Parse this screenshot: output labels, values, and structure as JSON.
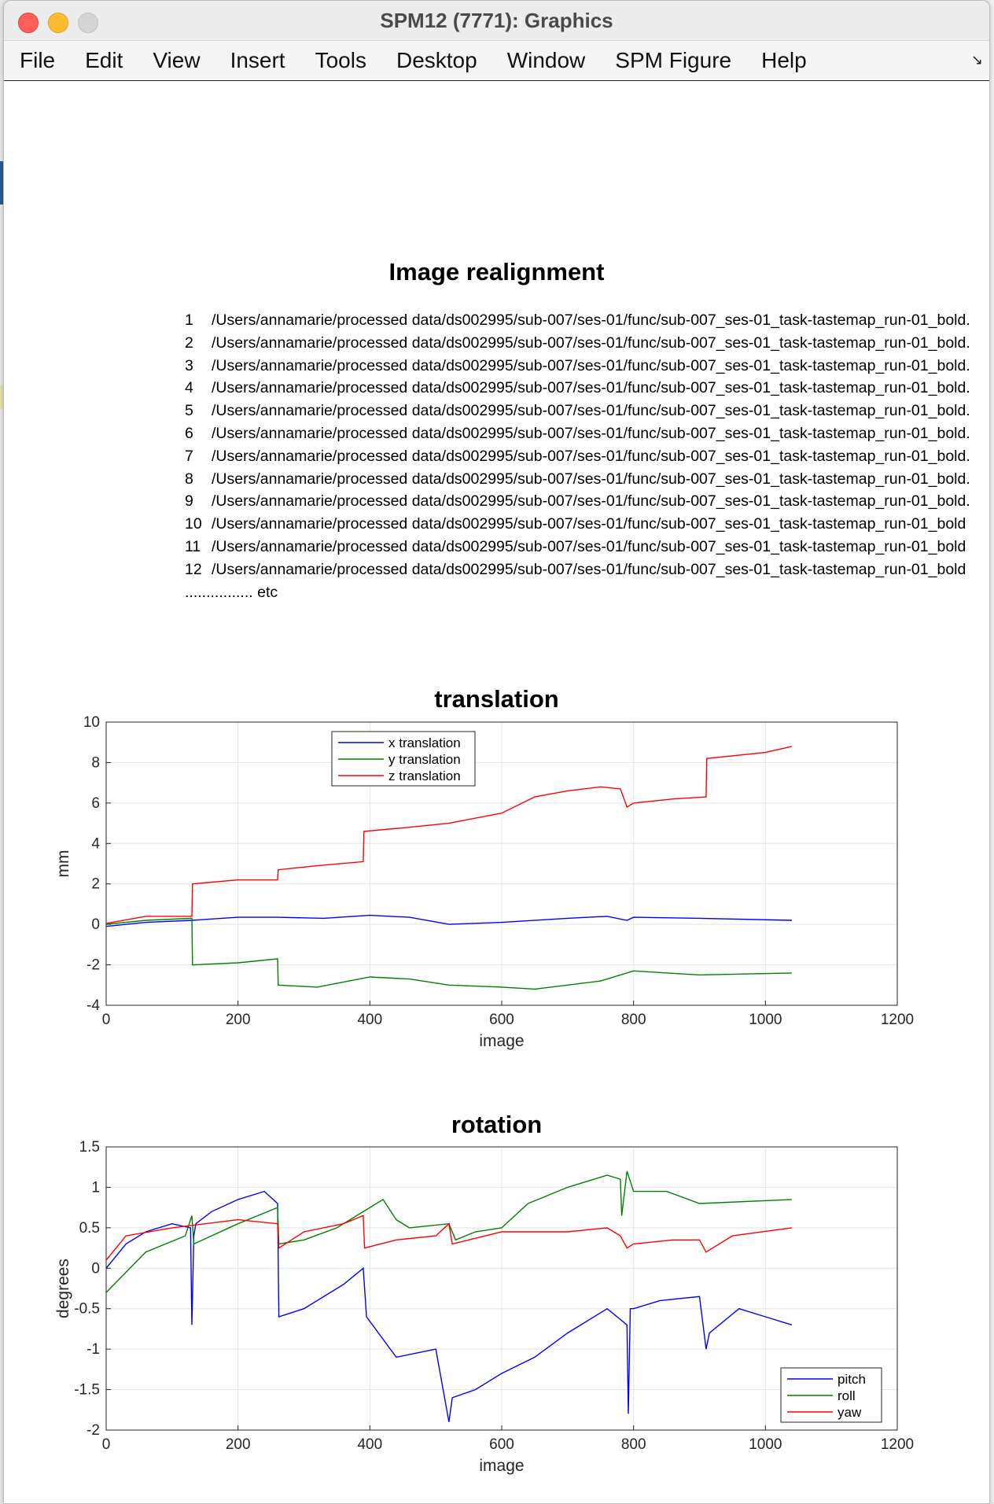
{
  "window": {
    "title": "SPM12 (7771): Graphics"
  },
  "menu": [
    "File",
    "Edit",
    "View",
    "Insert",
    "Tools",
    "Desktop",
    "Window",
    "SPM Figure",
    "Help"
  ],
  "figure": {
    "heading": "Image realignment",
    "files": [
      {
        "n": "1",
        "path": "/Users/annamarie/processed data/ds002995/sub-007/ses-01/func/sub-007_ses-01_task-tastemap_run-01_bold."
      },
      {
        "n": "2",
        "path": "/Users/annamarie/processed data/ds002995/sub-007/ses-01/func/sub-007_ses-01_task-tastemap_run-01_bold."
      },
      {
        "n": "3",
        "path": "/Users/annamarie/processed data/ds002995/sub-007/ses-01/func/sub-007_ses-01_task-tastemap_run-01_bold."
      },
      {
        "n": "4",
        "path": "/Users/annamarie/processed data/ds002995/sub-007/ses-01/func/sub-007_ses-01_task-tastemap_run-01_bold."
      },
      {
        "n": "5",
        "path": "/Users/annamarie/processed data/ds002995/sub-007/ses-01/func/sub-007_ses-01_task-tastemap_run-01_bold."
      },
      {
        "n": "6",
        "path": "/Users/annamarie/processed data/ds002995/sub-007/ses-01/func/sub-007_ses-01_task-tastemap_run-01_bold."
      },
      {
        "n": "7",
        "path": "/Users/annamarie/processed data/ds002995/sub-007/ses-01/func/sub-007_ses-01_task-tastemap_run-01_bold."
      },
      {
        "n": "8",
        "path": "/Users/annamarie/processed data/ds002995/sub-007/ses-01/func/sub-007_ses-01_task-tastemap_run-01_bold."
      },
      {
        "n": "9",
        "path": "/Users/annamarie/processed data/ds002995/sub-007/ses-01/func/sub-007_ses-01_task-tastemap_run-01_bold."
      },
      {
        "n": "10",
        "path": "/Users/annamarie/processed data/ds002995/sub-007/ses-01/func/sub-007_ses-01_task-tastemap_run-01_bold"
      },
      {
        "n": "11",
        "path": "/Users/annamarie/processed data/ds002995/sub-007/ses-01/func/sub-007_ses-01_task-tastemap_run-01_bold"
      },
      {
        "n": "12",
        "path": "/Users/annamarie/processed data/ds002995/sub-007/ses-01/func/sub-007_ses-01_task-tastemap_run-01_bold"
      }
    ],
    "etc_label": "................ etc"
  },
  "chart_data": [
    {
      "type": "line",
      "title": "translation",
      "xlabel": "image",
      "ylabel": "mm",
      "xlim": [
        0,
        1200
      ],
      "ylim": [
        -4,
        10
      ],
      "xticks": [
        0,
        200,
        400,
        600,
        800,
        1000,
        1200
      ],
      "yticks": [
        -4,
        -2,
        0,
        2,
        4,
        6,
        8,
        10
      ],
      "grid": true,
      "legend_position": "top-left",
      "series": [
        {
          "name": "x translation",
          "color": "#0000ff",
          "x": [
            0,
            60,
            130,
            200,
            260,
            330,
            400,
            460,
            520,
            600,
            700,
            760,
            790,
            800,
            900,
            1040
          ],
          "y": [
            -0.1,
            0.1,
            0.2,
            0.35,
            0.35,
            0.3,
            0.45,
            0.35,
            0.0,
            0.1,
            0.3,
            0.4,
            0.2,
            0.35,
            0.3,
            0.2
          ]
        },
        {
          "name": "y translation",
          "color": "#008000",
          "x": [
            0,
            60,
            130,
            131,
            200,
            260,
            261,
            320,
            400,
            460,
            520,
            600,
            650,
            700,
            750,
            800,
            900,
            1040
          ],
          "y": [
            0.0,
            0.2,
            0.3,
            -2.0,
            -1.9,
            -1.7,
            -3.0,
            -3.1,
            -2.6,
            -2.7,
            -3.0,
            -3.1,
            -3.2,
            -3.0,
            -2.8,
            -2.3,
            -2.5,
            -2.4
          ]
        },
        {
          "name": "z translation",
          "color": "#ff0000",
          "x": [
            0,
            60,
            130,
            131,
            200,
            260,
            261,
            320,
            390,
            391,
            460,
            520,
            600,
            650,
            700,
            750,
            780,
            790,
            800,
            860,
            910,
            911,
            1000,
            1040
          ],
          "y": [
            0.05,
            0.4,
            0.4,
            2.0,
            2.2,
            2.2,
            2.7,
            2.9,
            3.1,
            4.6,
            4.8,
            5.0,
            5.5,
            6.3,
            6.6,
            6.8,
            6.7,
            5.8,
            6.0,
            6.2,
            6.3,
            8.2,
            8.5,
            8.8
          ]
        }
      ]
    },
    {
      "type": "line",
      "title": "rotation",
      "xlabel": "image",
      "ylabel": "degrees",
      "xlim": [
        0,
        1200
      ],
      "ylim": [
        -2,
        1.5
      ],
      "xticks": [
        0,
        200,
        400,
        600,
        800,
        1000,
        1200
      ],
      "yticks": [
        -2,
        -1.5,
        -1,
        -0.5,
        0,
        0.5,
        1,
        1.5
      ],
      "grid": true,
      "legend_position": "bottom-right",
      "series": [
        {
          "name": "pitch",
          "color": "#0000ff",
          "x": [
            0,
            30,
            60,
            100,
            128,
            130,
            133,
            136,
            160,
            200,
            240,
            260,
            262,
            300,
            360,
            390,
            395,
            440,
            500,
            520,
            525,
            560,
            600,
            650,
            700,
            760,
            790,
            792,
            795,
            800,
            840,
            900,
            910,
            915,
            960,
            1000,
            1040
          ],
          "y": [
            0.0,
            0.3,
            0.45,
            0.55,
            0.5,
            -0.7,
            0.4,
            0.55,
            0.7,
            0.85,
            0.95,
            0.8,
            -0.6,
            -0.5,
            -0.2,
            0.0,
            -0.6,
            -1.1,
            -1.0,
            -1.9,
            -1.6,
            -1.5,
            -1.3,
            -1.1,
            -0.8,
            -0.5,
            -0.7,
            -1.8,
            -0.5,
            -0.5,
            -0.4,
            -0.35,
            -1.0,
            -0.8,
            -0.5,
            -0.6,
            -0.7
          ]
        },
        {
          "name": "roll",
          "color": "#008000",
          "x": [
            0,
            60,
            120,
            130,
            133,
            200,
            260,
            262,
            300,
            350,
            380,
            420,
            440,
            460,
            520,
            530,
            560,
            600,
            640,
            700,
            760,
            780,
            782,
            790,
            800,
            850,
            900,
            1040
          ],
          "y": [
            -0.3,
            0.2,
            0.4,
            0.65,
            0.3,
            0.55,
            0.75,
            0.3,
            0.35,
            0.5,
            0.65,
            0.85,
            0.6,
            0.5,
            0.55,
            0.35,
            0.45,
            0.5,
            0.8,
            1.0,
            1.15,
            1.1,
            0.65,
            1.2,
            0.95,
            0.95,
            0.8,
            0.85
          ]
        },
        {
          "name": "yaw",
          "color": "#ff0000",
          "x": [
            0,
            30,
            100,
            200,
            260,
            262,
            300,
            360,
            390,
            392,
            440,
            500,
            520,
            525,
            600,
            700,
            760,
            780,
            790,
            800,
            860,
            900,
            910,
            950,
            1040
          ],
          "y": [
            0.1,
            0.4,
            0.5,
            0.6,
            0.55,
            0.25,
            0.45,
            0.55,
            0.65,
            0.25,
            0.35,
            0.4,
            0.55,
            0.3,
            0.45,
            0.45,
            0.5,
            0.4,
            0.25,
            0.3,
            0.35,
            0.35,
            0.2,
            0.4,
            0.5
          ]
        }
      ]
    }
  ]
}
